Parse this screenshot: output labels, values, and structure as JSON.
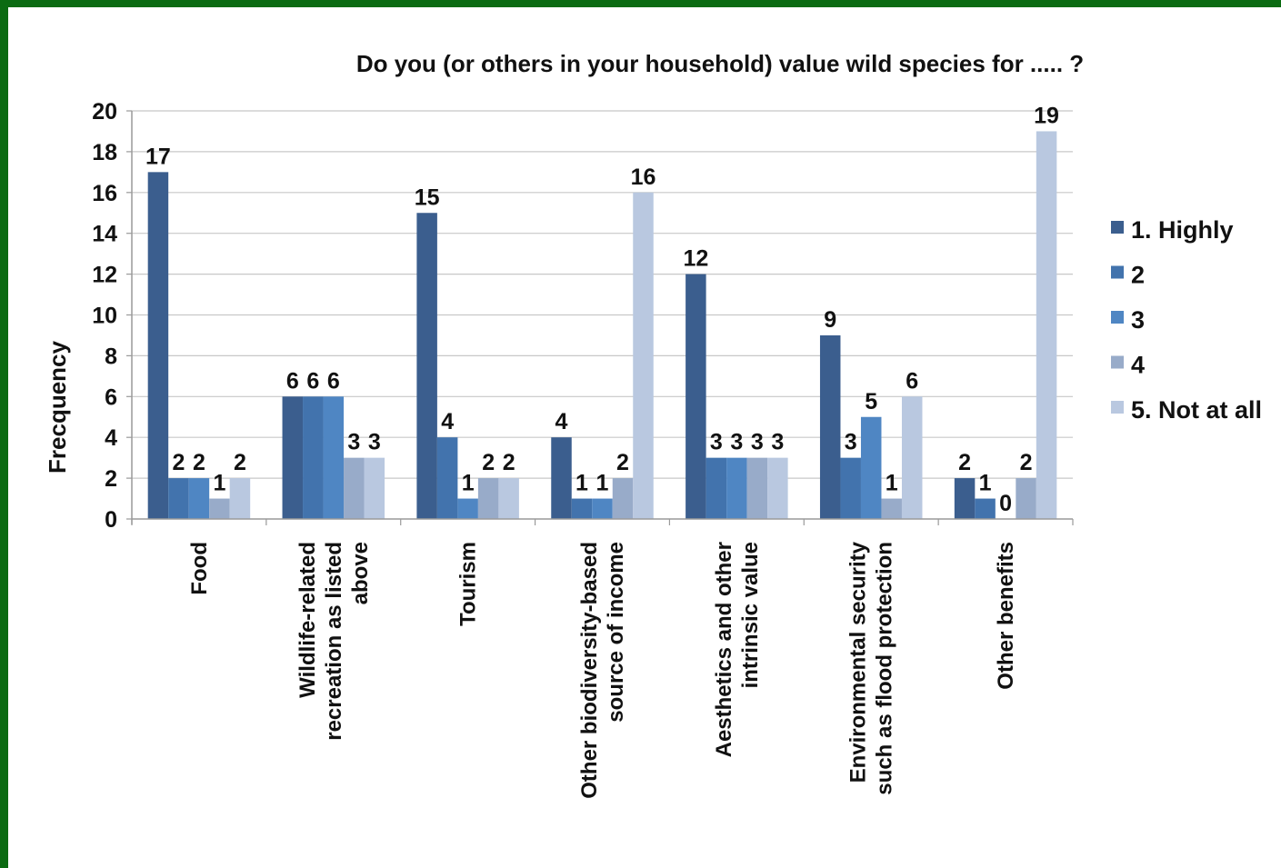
{
  "chart_data": {
    "type": "bar",
    "title": "Do you (or others in your household) value wild species for ..... ?",
    "xlabel": "",
    "ylabel": "Frecquency",
    "ylim": [
      0,
      20
    ],
    "yticks": [
      "0",
      "2",
      "4",
      "6",
      "8",
      "10",
      "12",
      "14",
      "16",
      "18",
      "20"
    ],
    "grid": true,
    "legend_position": "right",
    "categories": [
      [
        "Food"
      ],
      [
        "Wildlife-related",
        "recreation as listed",
        "above"
      ],
      [
        "Tourism"
      ],
      [
        "Other biodiversity-based",
        "source of income"
      ],
      [
        "Aesthetics and other",
        "intrinsic value"
      ],
      [
        "Environmental security",
        "such as flood protection"
      ],
      [
        "Other benefits"
      ]
    ],
    "series": [
      {
        "name": "1. Highly",
        "color": "#3b5e8e",
        "values": [
          17,
          6,
          15,
          4,
          12,
          9,
          2
        ]
      },
      {
        "name": "2",
        "color": "#4273ad",
        "values": [
          2,
          6,
          4,
          1,
          3,
          3,
          1
        ]
      },
      {
        "name": "3",
        "color": "#4f86c3",
        "values": [
          2,
          6,
          1,
          1,
          3,
          5,
          0
        ]
      },
      {
        "name": "4",
        "color": "#98abc9",
        "values": [
          1,
          3,
          2,
          2,
          3,
          1,
          2
        ]
      },
      {
        "name": "5. Not at all",
        "color": "#b9c8e0",
        "values": [
          2,
          3,
          2,
          16,
          3,
          6,
          19
        ]
      }
    ]
  }
}
